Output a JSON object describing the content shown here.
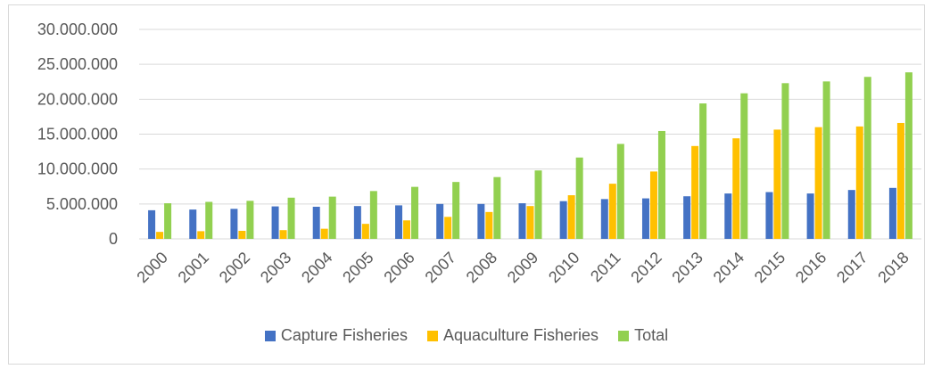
{
  "chart_data": {
    "type": "bar",
    "title": "",
    "xlabel": "",
    "ylabel": "",
    "ylim": [
      0,
      30000000
    ],
    "yticks": [
      0,
      5000000,
      10000000,
      15000000,
      20000000,
      25000000,
      30000000
    ],
    "ytick_labels": [
      "0",
      "5.000.000",
      "10.000.000",
      "15.000.000",
      "20.000.000",
      "25.000.000",
      "30.000.000"
    ],
    "grid": true,
    "legend_position": "bottom",
    "categories": [
      "2000",
      "2001",
      "2002",
      "2003",
      "2004",
      "2005",
      "2006",
      "2007",
      "2008",
      "2009",
      "2010",
      "2011",
      "2012",
      "2013",
      "2014",
      "2015",
      "2016",
      "2017",
      "2018"
    ],
    "series": [
      {
        "name": "Capture Fisheries",
        "color": "#4472c4",
        "values": [
          4100000,
          4200000,
          4300000,
          4650000,
          4600000,
          4700000,
          4800000,
          5000000,
          5000000,
          5100000,
          5400000,
          5700000,
          5800000,
          6100000,
          6500000,
          6700000,
          6500000,
          7000000,
          7300000
        ]
      },
      {
        "name": "Aquaculture Fisheries",
        "color": "#ffc000",
        "values": [
          1000000,
          1100000,
          1150000,
          1250000,
          1450000,
          2150000,
          2650000,
          3150000,
          3850000,
          4700000,
          6250000,
          7900000,
          9650000,
          13300000,
          14400000,
          15650000,
          16000000,
          16100000,
          16600000
        ]
      },
      {
        "name": "Total",
        "color": "#92d050",
        "values": [
          5100000,
          5300000,
          5450000,
          5900000,
          6050000,
          6850000,
          7450000,
          8150000,
          8850000,
          9800000,
          11650000,
          13600000,
          15450000,
          19400000,
          20850000,
          22300000,
          22550000,
          23200000,
          23850000
        ]
      }
    ]
  }
}
